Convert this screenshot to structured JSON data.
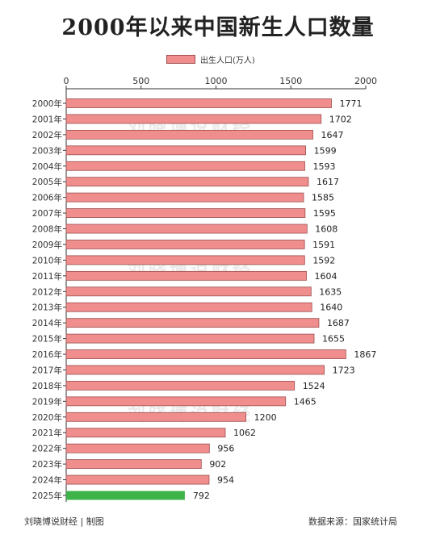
{
  "title": "2000年以来中国新生人口数量",
  "watermark": "刘晓博说财经",
  "footer": {
    "left": "刘晓博说财经 | 制图",
    "right": "数据来源：国家统计局"
  },
  "colors": {
    "bar": "#f08d8d",
    "bar_stroke": "#9c4f4f",
    "highlight": "#3db34a",
    "axis": "#333333"
  },
  "chart_data": {
    "type": "bar",
    "orientation": "horizontal",
    "series": [
      {
        "name": "出生人口(万人)",
        "values": [
          1771,
          1702,
          1647,
          1599,
          1593,
          1617,
          1585,
          1595,
          1608,
          1591,
          1592,
          1604,
          1635,
          1640,
          1687,
          1655,
          1867,
          1723,
          1524,
          1465,
          1200,
          1062,
          956,
          902,
          954,
          792
        ]
      }
    ],
    "categories": [
      "2000年",
      "2001年",
      "2002年",
      "2003年",
      "2004年",
      "2005年",
      "2006年",
      "2007年",
      "2008年",
      "2009年",
      "2010年",
      "2011年",
      "2012年",
      "2013年",
      "2014年",
      "2015年",
      "2016年",
      "2017年",
      "2018年",
      "2019年",
      "2020年",
      "2021年",
      "2022年",
      "2023年",
      "2024年",
      "2025年"
    ],
    "highlight_category": "2025年",
    "xlim": [
      0,
      2000
    ],
    "xticks": [
      0,
      500,
      1000,
      1500,
      2000
    ],
    "axis_position": "top",
    "legend_position": "top",
    "grid": false
  }
}
